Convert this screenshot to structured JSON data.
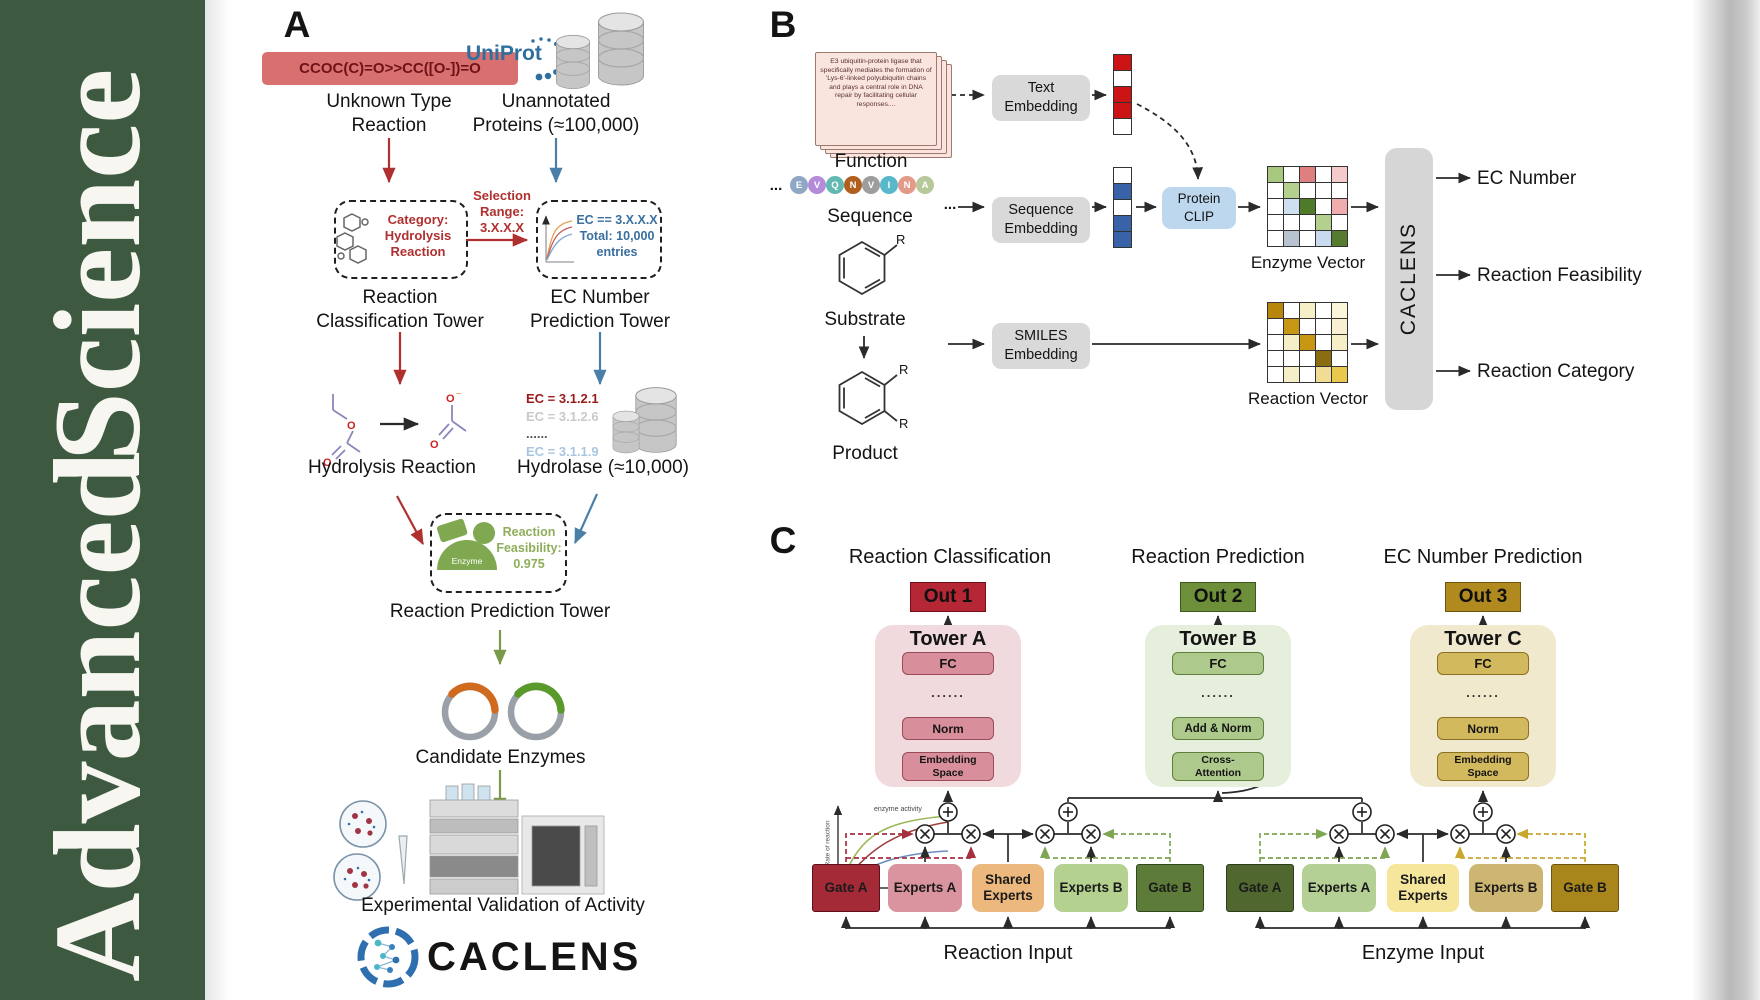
{
  "sidebar": {
    "word_top": "Science",
    "word_bottom": "Advanced",
    "bg": "#3d5a40"
  },
  "panelA": {
    "label": "A",
    "smiles_box": "CCOC(C)=O>>CC([O-])=O",
    "unknown_type": "Unknown Type\nReaction",
    "uniprot": "UniProt",
    "unannotated": "Unannotated\nProteins (≈100,000)",
    "selection_range": "Selection\nRange:\n3.X.X.X",
    "category_box": "Category:\nHydrolysis\nReaction",
    "classification_tower": "Reaction\nClassification Tower",
    "ec_box": "EC == 3.X.X.X\nTotal: 10,000\nentries",
    "ec_tower": "EC Number\nPrediction Tower",
    "hydrolysis_reaction": "Hydrolysis Reaction",
    "ec_list": [
      {
        "text": "EC = 3.1.2.1",
        "color": "#9b1b1b",
        "bold": true
      },
      {
        "text": "EC = 3.1.2.6",
        "color": "#c9c9c9",
        "bold": true
      },
      {
        "text": "......",
        "color": "#555555",
        "bold": true
      },
      {
        "text": "EC = 3.1.1.9",
        "color": "#a9c6e0",
        "bold": true
      }
    ],
    "hydrolase": "Hydrolase (≈10,000)",
    "enzyme_blob": "Enzyme",
    "feasibility": "Reaction\nFeasibility:\n0.975",
    "prediction_tower": "Reaction Prediction Tower",
    "candidate_enzymes": "Candidate Enzymes",
    "graph": {
      "curve_label": "enzyme activity",
      "ylabel": "Rate of reaction",
      "xlabel": "Substrate"
    },
    "validation": "Experimental Validation of Activity",
    "logo_text": "CACLENS"
  },
  "panelB": {
    "label": "B",
    "function_card": "E3 ubiquitin-protein ligase that specifically mediates the formation of 'Lys-6'-linked polyubiquitin chains and plays a central role in DNA repair by facilitating cellular responses....",
    "function_label": "Function",
    "ellipsis": "...",
    "sequence_residues": [
      {
        "letter": "E",
        "color": "#8fa6c4"
      },
      {
        "letter": "V",
        "color": "#b28cd9"
      },
      {
        "letter": "Q",
        "color": "#63b8b4"
      },
      {
        "letter": "N",
        "color": "#b05f1f"
      },
      {
        "letter": "V",
        "color": "#9d9d9d"
      },
      {
        "letter": "I",
        "color": "#58b7c9"
      },
      {
        "letter": "N",
        "color": "#e39a88"
      },
      {
        "letter": "A",
        "color": "#b7c99a"
      }
    ],
    "sequence_label": "Sequence",
    "substrate_label": "Substrate",
    "product_label": "Product",
    "r_label": "R",
    "text_embedding": "Text\nEmbedding",
    "sequence_embedding": "Sequence\nEmbedding",
    "smiles_embedding": "SMILES\nEmbedding",
    "protein_clip": "Protein\nCLIP",
    "text_vector": [
      "#cc1414",
      "#ffffff",
      "#cc1414",
      "#cc1414",
      "#ffffff"
    ],
    "seq_vector": [
      "#ffffff",
      "#3a62a8",
      "#ffffff",
      "#3a62a8",
      "#3a62a8"
    ],
    "enzyme_matrix": [
      [
        "#a9c87f",
        "#ffffff",
        "#e07f7f",
        "#ffffff",
        "#f4caca"
      ],
      [
        "#ffffff",
        "#b3d08f",
        "#ffffff",
        "#ffffff",
        "#ffffff"
      ],
      [
        "#ffffff",
        "#cfdff2",
        "#4f7a2a",
        "#ffffff",
        "#efadad"
      ],
      [
        "#ffffff",
        "#ffffff",
        "#ffffff",
        "#b3d08f",
        "#ffffff"
      ],
      [
        "#ffffff",
        "#b9c2cf",
        "#ffffff",
        "#c9d9ee",
        "#567a2e"
      ]
    ],
    "reaction_matrix": [
      [
        "#b8860b",
        "#ffffff",
        "#f6eec6",
        "#ffffff",
        "#fbf5da"
      ],
      [
        "#ffffff",
        "#c79612",
        "#ffffff",
        "#ffffff",
        "#f8f0d0"
      ],
      [
        "#ffffff",
        "#f6eec6",
        "#c79612",
        "#ffffff",
        "#f6eec6"
      ],
      [
        "#ffffff",
        "#ffffff",
        "#ffffff",
        "#8a6d0e",
        "#ffffff"
      ],
      [
        "#ffffff",
        "#f6eec6",
        "#ffffff",
        "#f0dc94",
        "#e8c94e"
      ]
    ],
    "enzyme_vector_label": "Enzyme Vector",
    "reaction_vector_label": "Reaction Vector",
    "caclens_bar": "CACLENS",
    "outputs": [
      "EC Number",
      "Reaction Feasibility",
      "Reaction Category"
    ]
  },
  "panelC": {
    "label": "C",
    "columns": [
      {
        "header": "Reaction Classification",
        "out": "Out 1",
        "out_bg": "#b52735",
        "out_border": "#6d1018",
        "tower": "Tower A",
        "tower_bg": "#f1dadd",
        "block_bg": "#d98f9b",
        "block_border": "#9a4a58",
        "fc": "FC",
        "dots": "......",
        "mid": "Norm",
        "bottom": "Embedding\nSpace"
      },
      {
        "header": "Reaction Prediction",
        "out": "Out 2",
        "out_bg": "#6d8f39",
        "out_border": "#3d5a1c",
        "tower": "Tower B",
        "tower_bg": "#e6eedc",
        "block_bg": "#aec98c",
        "block_border": "#5f7f3a",
        "fc": "FC",
        "dots": "......",
        "mid": "Add & Norm",
        "bottom": "Cross-\nAttention"
      },
      {
        "header": "EC Number Prediction",
        "out": "Out 3",
        "out_bg": "#b08a1f",
        "out_border": "#6d5310",
        "tower": "Tower C",
        "tower_bg": "#f1e9cd",
        "block_bg": "#d2b95e",
        "block_border": "#8a7020",
        "fc": "FC",
        "dots": "......",
        "mid": "Norm",
        "bottom": "Embedding\nSpace"
      }
    ],
    "moe": {
      "reaction": {
        "boxes": [
          {
            "label": "Gate A",
            "bg": "#a52a38",
            "border": "#5f0d16"
          },
          {
            "label": "Experts A",
            "bg": "#d9949f"
          },
          {
            "label": "Shared\nExperts",
            "bg": "#ecb87d"
          },
          {
            "label": "Experts B",
            "bg": "#b4d18f"
          },
          {
            "label": "Gate B",
            "bg": "#5e7c39",
            "border": "#32481c"
          }
        ],
        "input_label": "Reaction Input"
      },
      "enzyme": {
        "boxes": [
          {
            "label": "Gate A",
            "bg": "#50682f",
            "border": "#2c3d18"
          },
          {
            "label": "Experts A",
            "bg": "#b5d095"
          },
          {
            "label": "Shared\nExperts",
            "bg": "#f6e69c"
          },
          {
            "label": "Experts B",
            "bg": "#cdb671"
          },
          {
            "label": "Gate B",
            "bg": "#a8861c",
            "border": "#6b5410"
          }
        ],
        "input_label": "Enzyme Input"
      }
    }
  },
  "ui_colors": {
    "arrow_red": "#b03030",
    "arrow_blue": "#4a7fa8",
    "arrow_green": "#7a9a4a",
    "uniprot_blue": "#2f6f9f",
    "logo_blue": "#2f6fb0",
    "smiles_box_bg": "#d97070",
    "smiles_text": "#6f1216"
  }
}
